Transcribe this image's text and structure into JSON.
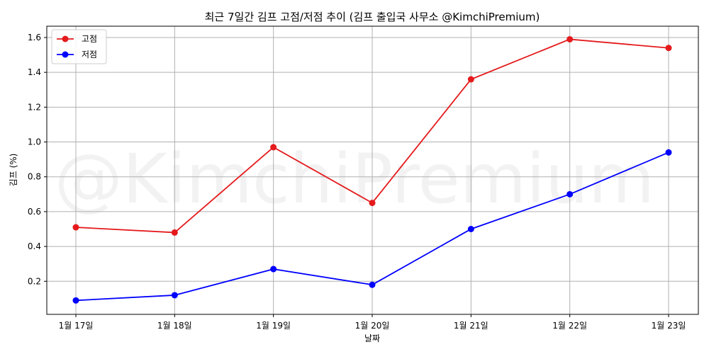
{
  "chart_data": {
    "type": "line",
    "title": "최근 7일간 김프 고점/저점 추이 (김프 출입국 사무소 @KimchiPremium)",
    "xlabel": "날짜",
    "ylabel": "김프 (%)",
    "categories": [
      "1월 17일",
      "1월 18일",
      "1월 19일",
      "1월 20일",
      "1월 21일",
      "1월 22일",
      "1월 23일"
    ],
    "series": [
      {
        "name": "고점",
        "color": "#e41a1c",
        "values": [
          0.51,
          0.48,
          0.97,
          0.65,
          1.36,
          1.59,
          1.54
        ]
      },
      {
        "name": "저점",
        "color": "#0000ff",
        "values": [
          0.09,
          0.12,
          0.27,
          0.18,
          0.5,
          0.7,
          0.94
        ]
      }
    ],
    "ylim": [
      0.01,
      1.665
    ],
    "yticks": [
      0.2,
      0.4,
      0.6,
      0.8,
      1.0,
      1.2,
      1.4,
      1.6
    ],
    "ytick_labels": [
      "0.2",
      "0.4",
      "0.6",
      "0.8",
      "1.0",
      "1.2",
      "1.4",
      "1.6"
    ],
    "grid": true,
    "legend_position": "top-left",
    "watermark": "@KimchiPremium"
  }
}
